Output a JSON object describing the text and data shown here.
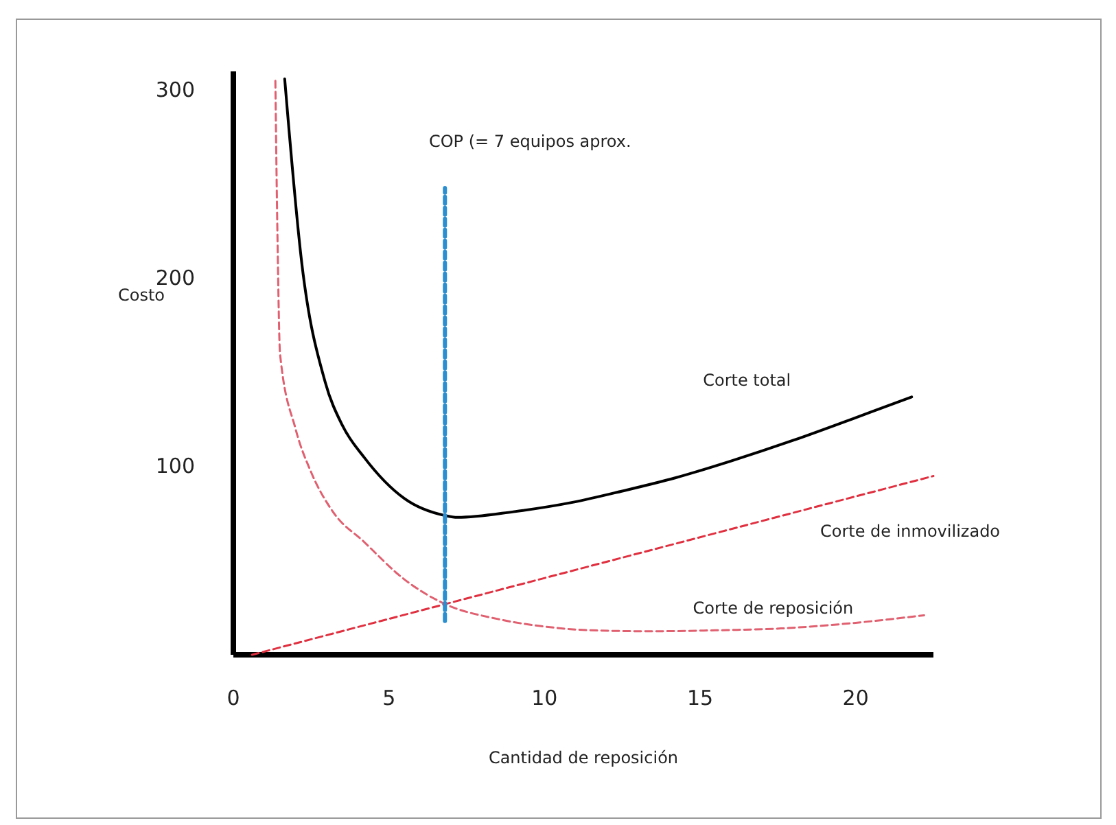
{
  "chart_data": {
    "type": "line",
    "xlabel": "Cantidad de reposición",
    "ylabel": "Costo",
    "xlim": [
      0,
      22.5
    ],
    "ylim": [
      0,
      310
    ],
    "xticks": [
      0,
      5,
      10,
      15,
      20
    ],
    "yticks": [
      100,
      200,
      300
    ],
    "grid": false,
    "marker": "none",
    "series": [
      {
        "name": "Corte total",
        "color": "#000000",
        "line_style": "solid",
        "x": [
          1.65,
          2.2,
          2.95,
          3.5,
          4.2,
          5.5,
          6.8,
          7.2,
          9,
          10.9,
          12.5,
          14.2,
          16,
          18,
          20,
          21.8
        ],
        "values": [
          306,
          208,
          145,
          122,
          105,
          83,
          74,
          73,
          76,
          81,
          87,
          94,
          103,
          114,
          126,
          137
        ]
      },
      {
        "name": "Corte de reposición",
        "color": "#e06070",
        "line_style": "dashed",
        "x": [
          1.35,
          1.42,
          1.5,
          2,
          2.5,
          3.2,
          4.2,
          5.5,
          6.8,
          8.5,
          10,
          11.5,
          13.4,
          15.5,
          17.6,
          20,
          22.2
        ],
        "values": [
          305,
          220,
          160,
          120,
          97,
          76,
          60,
          40,
          27,
          19,
          15,
          13,
          12.5,
          13,
          14,
          17,
          21
        ]
      },
      {
        "name": "Corte de inmovilizado",
        "color": "#e03040",
        "line_style": "dashed",
        "x": [
          0.6,
          22.5
        ],
        "values": [
          0,
          95
        ]
      },
      {
        "name": "COP (= 7 equipos aprox.",
        "color": "#2a8fd0",
        "line_style": "dashed",
        "x": [
          6.8,
          6.8
        ],
        "values": [
          18,
          248
        ]
      }
    ]
  }
}
